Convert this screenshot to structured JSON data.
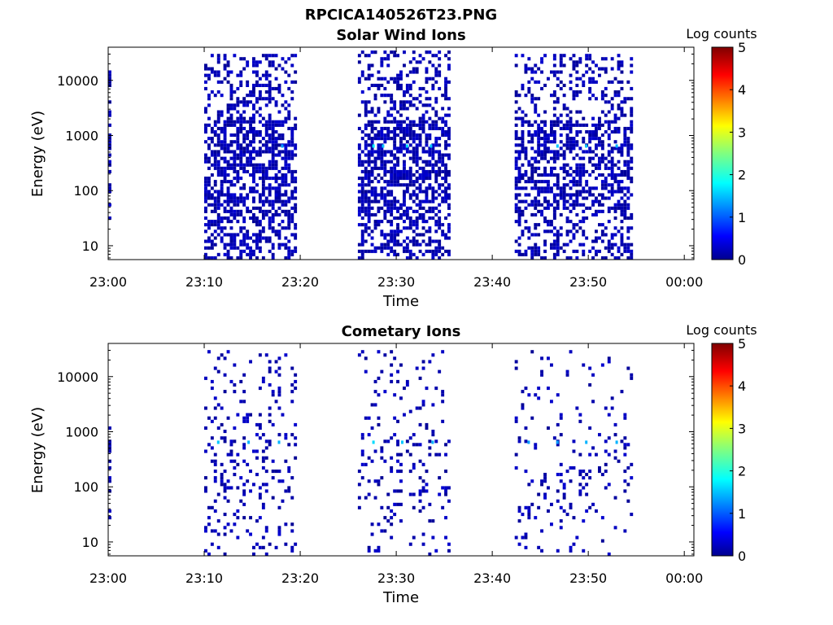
{
  "figure": {
    "title": "RPCICA140526T23.PNG"
  },
  "chart_data": [
    {
      "type": "heatmap",
      "title": "Solar Wind Ions",
      "xlabel": "Time",
      "ylabel": "Energy (eV)",
      "x_ticks": [
        "23:00",
        "23:10",
        "23:20",
        "23:30",
        "23:40",
        "23:50",
        "00:00"
      ],
      "y_ticks": [
        "10",
        "100",
        "1000",
        "10000"
      ],
      "x_range": [
        "23:00",
        "00:01"
      ],
      "y_range": [
        5.6,
        40000
      ],
      "y_scale": "log",
      "colorbar": {
        "label": "Log counts",
        "ticks": [
          "0",
          "1",
          "2",
          "3",
          "4",
          "5"
        ],
        "range": [
          0,
          5
        ],
        "colormap": "jet"
      },
      "active_intervals": [
        {
          "start": "23:00",
          "end": "23:00:20",
          "emin": 25,
          "emax": 30000,
          "density": 0.55
        },
        {
          "start": "23:10:00",
          "end": "23:19:40",
          "emin": 5.6,
          "emax": 30000,
          "density": 0.62
        },
        {
          "start": "23:26:00",
          "end": "23:35:40",
          "emin": 5.6,
          "emax": 35000,
          "density": 0.6
        },
        {
          "start": "23:42:20",
          "end": "23:54:40",
          "emin": 5.6,
          "emax": 30000,
          "density": 0.5
        }
      ],
      "bright_spots": [
        {
          "time": "23:27:30",
          "energy": 600,
          "log_counts": 1.8
        },
        {
          "time": "23:28:30",
          "energy": 600,
          "log_counts": 1.6
        },
        {
          "time": "23:31:00",
          "energy": 600,
          "log_counts": 1.7
        },
        {
          "time": "23:33:30",
          "energy": 600,
          "log_counts": 1.6
        },
        {
          "time": "23:46:40",
          "energy": 600,
          "log_counts": 1.6
        },
        {
          "time": "23:49:40",
          "energy": 600,
          "log_counts": 1.6
        },
        {
          "time": "23:52:50",
          "energy": 600,
          "log_counts": 1.5
        },
        {
          "time": "23:18:00",
          "energy": 600,
          "log_counts": 1.4
        }
      ]
    },
    {
      "type": "heatmap",
      "title": "Cometary Ions",
      "xlabel": "Time",
      "ylabel": "Energy (eV)",
      "x_ticks": [
        "23:00",
        "23:10",
        "23:20",
        "23:30",
        "23:40",
        "23:50",
        "00:00"
      ],
      "y_ticks": [
        "10",
        "100",
        "1000",
        "10000"
      ],
      "x_range": [
        "23:00",
        "00:01"
      ],
      "y_range": [
        5.6,
        40000
      ],
      "y_scale": "log",
      "colorbar": {
        "label": "Log counts",
        "ticks": [
          "0",
          "1",
          "2",
          "3",
          "4",
          "5"
        ],
        "range": [
          0,
          5
        ],
        "colormap": "jet"
      },
      "active_intervals": [
        {
          "start": "23:00",
          "end": "23:00:20",
          "emin": 25,
          "emax": 5000,
          "density": 0.35
        },
        {
          "start": "23:10:00",
          "end": "23:19:40",
          "emin": 5.6,
          "emax": 30000,
          "density": 0.16
        },
        {
          "start": "23:26:00",
          "end": "23:35:40",
          "emin": 5.6,
          "emax": 30000,
          "density": 0.13
        },
        {
          "start": "23:42:20",
          "end": "23:54:40",
          "emin": 5.6,
          "emax": 30000,
          "density": 0.09
        }
      ],
      "bright_spots": [
        {
          "time": "23:11:20",
          "energy": 600,
          "log_counts": 1.6
        },
        {
          "time": "23:14:30",
          "energy": 600,
          "log_counts": 1.5
        },
        {
          "time": "23:17:40",
          "energy": 600,
          "log_counts": 1.5
        },
        {
          "time": "23:27:30",
          "energy": 600,
          "log_counts": 1.7
        },
        {
          "time": "23:30:30",
          "energy": 600,
          "log_counts": 1.6
        },
        {
          "time": "23:33:40",
          "energy": 600,
          "log_counts": 1.5
        },
        {
          "time": "23:43:40",
          "energy": 600,
          "log_counts": 1.4
        },
        {
          "time": "23:46:40",
          "energy": 600,
          "log_counts": 1.4
        },
        {
          "time": "23:49:40",
          "energy": 600,
          "log_counts": 1.5
        },
        {
          "time": "23:52:50",
          "energy": 600,
          "log_counts": 1.5
        }
      ]
    }
  ]
}
